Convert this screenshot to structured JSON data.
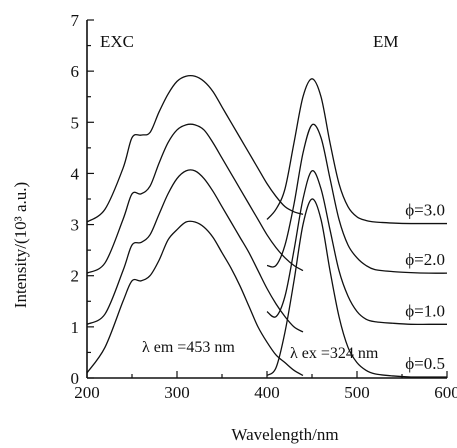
{
  "chart_data": {
    "type": "line",
    "xlabel": "Wavelength/nm",
    "ylabel": "Intensity/(10³ a.u.)",
    "xlim": [
      200,
      600
    ],
    "ylim": [
      0,
      7
    ],
    "xticks": [
      "200",
      "300",
      "400",
      "500",
      "600"
    ],
    "yticks": [
      "0",
      "1",
      "2",
      "3",
      "4",
      "5",
      "6",
      "7"
    ],
    "grid": false,
    "panel_labels": {
      "excitation": "EXC",
      "emission": "EM"
    },
    "annotations": {
      "lambda_em": "λ em =453 nm",
      "lambda_ex": "λ ex =324 nm"
    },
    "series": [
      {
        "name": "ϕ=0.5",
        "excitation": {
          "x": [
            200,
            220,
            240,
            250,
            260,
            270,
            280,
            290,
            300,
            310,
            320,
            330,
            340,
            350,
            360,
            370,
            380,
            390,
            400,
            410,
            420,
            430,
            440
          ],
          "y": [
            0.1,
            0.6,
            1.5,
            1.9,
            1.9,
            2.0,
            2.3,
            2.7,
            2.9,
            3.05,
            3.05,
            2.95,
            2.75,
            2.45,
            2.15,
            1.8,
            1.4,
            1.0,
            0.7,
            0.45,
            0.3,
            0.15,
            0.05
          ]
        },
        "emission": {
          "x": [
            400,
            410,
            420,
            430,
            440,
            450,
            460,
            470,
            480,
            490,
            500,
            510,
            520,
            540,
            560,
            580,
            600
          ],
          "y": [
            0.05,
            0.2,
            0.9,
            1.9,
            3.0,
            3.5,
            3.1,
            2.1,
            1.2,
            0.6,
            0.3,
            0.15,
            0.08,
            0.04,
            0.02,
            0.02,
            0.02
          ]
        }
      },
      {
        "name": "ϕ=1.0",
        "excitation": {
          "x": [
            200,
            220,
            240,
            250,
            260,
            270,
            280,
            290,
            300,
            310,
            320,
            330,
            340,
            350,
            360,
            370,
            380,
            390,
            400,
            410,
            420,
            430,
            440
          ],
          "y": [
            1.05,
            1.25,
            2.1,
            2.6,
            2.65,
            2.8,
            3.2,
            3.6,
            3.9,
            4.05,
            4.05,
            3.9,
            3.65,
            3.35,
            3.05,
            2.75,
            2.45,
            2.1,
            1.75,
            1.45,
            1.2,
            1.0,
            0.9
          ]
        },
        "emission": {
          "x": [
            400,
            410,
            420,
            430,
            440,
            450,
            460,
            470,
            480,
            490,
            500,
            510,
            520,
            540,
            560,
            580,
            600
          ],
          "y": [
            1.3,
            1.2,
            1.6,
            2.5,
            3.5,
            4.05,
            3.7,
            2.9,
            2.1,
            1.6,
            1.3,
            1.15,
            1.1,
            1.07,
            1.05,
            1.05,
            1.05
          ]
        }
      },
      {
        "name": "ϕ=2.0",
        "excitation": {
          "x": [
            200,
            220,
            240,
            250,
            260,
            270,
            280,
            290,
            300,
            310,
            320,
            330,
            340,
            350,
            360,
            370,
            380,
            390,
            400,
            410,
            420,
            430,
            440
          ],
          "y": [
            2.05,
            2.25,
            3.1,
            3.6,
            3.6,
            3.75,
            4.2,
            4.6,
            4.85,
            4.95,
            4.95,
            4.85,
            4.6,
            4.3,
            4.0,
            3.7,
            3.4,
            3.1,
            2.8,
            2.55,
            2.35,
            2.2,
            2.1
          ]
        },
        "emission": {
          "x": [
            400,
            410,
            420,
            430,
            440,
            450,
            460,
            470,
            480,
            490,
            500,
            510,
            520,
            540,
            560,
            580,
            600
          ],
          "y": [
            2.2,
            2.2,
            2.6,
            3.4,
            4.4,
            4.95,
            4.7,
            3.9,
            3.1,
            2.6,
            2.35,
            2.2,
            2.12,
            2.08,
            2.06,
            2.05,
            2.05
          ]
        }
      },
      {
        "name": "ϕ=3.0",
        "excitation": {
          "x": [
            200,
            220,
            240,
            250,
            260,
            270,
            280,
            290,
            300,
            310,
            320,
            330,
            340,
            350,
            360,
            370,
            380,
            390,
            400,
            410,
            420,
            430,
            440
          ],
          "y": [
            3.05,
            3.3,
            4.1,
            4.7,
            4.75,
            4.8,
            5.2,
            5.55,
            5.8,
            5.9,
            5.9,
            5.8,
            5.6,
            5.3,
            5.0,
            4.7,
            4.4,
            4.1,
            3.8,
            3.55,
            3.35,
            3.25,
            3.2
          ]
        },
        "emission": {
          "x": [
            400,
            410,
            420,
            430,
            440,
            450,
            460,
            470,
            480,
            490,
            500,
            510,
            520,
            540,
            560,
            580,
            600
          ],
          "y": [
            3.1,
            3.3,
            3.7,
            4.6,
            5.5,
            5.85,
            5.5,
            4.6,
            3.8,
            3.35,
            3.15,
            3.08,
            3.05,
            3.03,
            3.02,
            3.02,
            3.02
          ]
        }
      }
    ]
  }
}
